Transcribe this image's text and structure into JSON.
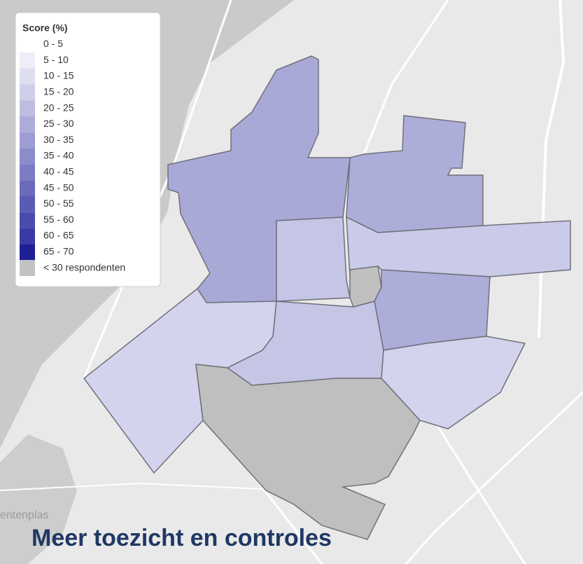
{
  "legend": {
    "title": "Score (%)",
    "items": [
      {
        "label": "0 - 5",
        "color": "#ffffff"
      },
      {
        "label": "5 - 10",
        "color": "#eeeef8"
      },
      {
        "label": "10 - 15",
        "color": "#dedef1"
      },
      {
        "label": "15 - 20",
        "color": "#cecee9"
      },
      {
        "label": "20 - 25",
        "color": "#bdbde2"
      },
      {
        "label": "25 - 30",
        "color": "#adadda"
      },
      {
        "label": "30 - 35",
        "color": "#9d9dd3"
      },
      {
        "label": "35 - 40",
        "color": "#8c8ccb"
      },
      {
        "label": "40 - 45",
        "color": "#7c7cc4"
      },
      {
        "label": "45 - 50",
        "color": "#6b6bbc"
      },
      {
        "label": "50 - 55",
        "color": "#5b5bb5"
      },
      {
        "label": "55 - 60",
        "color": "#4b4bad"
      },
      {
        "label": "60 - 65",
        "color": "#3a3aa6"
      },
      {
        "label": "65 - 70",
        "color": "#1e1e96"
      },
      {
        "label": "< 30 respondenten",
        "color": "#c2c2c2"
      }
    ]
  },
  "map_label": "entenplas",
  "title": "Meer toezicht en controles"
}
